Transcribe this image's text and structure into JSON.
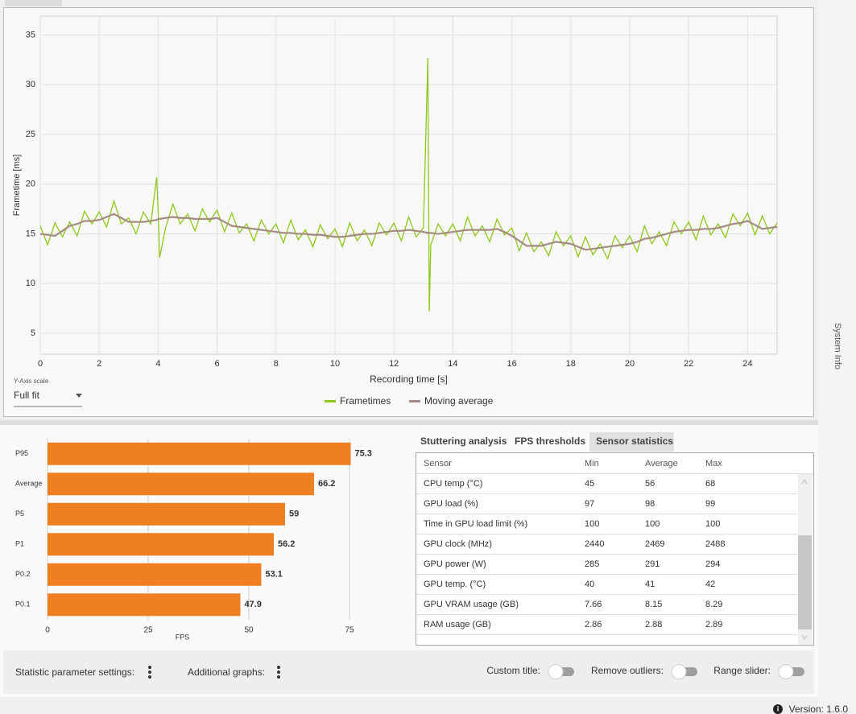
{
  "chart_data": [
    {
      "type": "line",
      "y_label": "Frametime [ms]",
      "x_label": "Recording time [s]",
      "x": [
        0,
        0.25,
        0.5,
        0.75,
        1,
        1.25,
        1.5,
        1.75,
        2,
        2.25,
        2.5,
        2.75,
        3,
        3.25,
        3.5,
        3.75,
        3.95,
        4,
        4.05,
        4.25,
        4.5,
        4.75,
        5,
        5.25,
        5.5,
        5.75,
        6,
        6.25,
        6.5,
        6.75,
        7,
        7.25,
        7.5,
        7.75,
        8,
        8.25,
        8.5,
        8.75,
        9,
        9.25,
        9.5,
        9.75,
        10,
        10.25,
        10.5,
        10.75,
        11,
        11.25,
        11.5,
        11.75,
        12,
        12.25,
        12.5,
        12.75,
        13,
        13.15,
        13.2,
        13.25,
        13.5,
        13.75,
        14,
        14.25,
        14.5,
        14.75,
        15,
        15.25,
        15.5,
        15.75,
        16,
        16.25,
        16.5,
        16.75,
        17,
        17.25,
        17.5,
        17.75,
        18,
        18.25,
        18.5,
        18.75,
        19,
        19.25,
        19.5,
        19.75,
        20,
        20.25,
        20.5,
        20.75,
        21,
        21.25,
        21.5,
        21.75,
        22,
        22.25,
        22.5,
        22.75,
        23,
        23.25,
        23.5,
        23.75,
        24,
        24.25,
        24.5,
        24.75,
        25
      ],
      "series": [
        {
          "name": "Frametimes",
          "color": "#8ec81a",
          "values": [
            15.8,
            13.9,
            16.1,
            14.7,
            16.2,
            14.8,
            17.3,
            16.0,
            17.2,
            15.7,
            18.3,
            16.0,
            16.6,
            15.0,
            17.2,
            16.0,
            20.7,
            17.3,
            12.6,
            15.6,
            18.0,
            16.0,
            17.0,
            15.3,
            17.5,
            16.2,
            17.4,
            15.2,
            17.1,
            15.1,
            16.0,
            14.3,
            16.4,
            15.0,
            16.0,
            14.1,
            16.4,
            14.4,
            15.4,
            13.7,
            15.9,
            14.5,
            15.5,
            13.7,
            16.1,
            14.3,
            15.4,
            13.8,
            16.1,
            14.9,
            16.1,
            14.3,
            16.7,
            14.7,
            15.6,
            32.7,
            7.2,
            13.9,
            16.0,
            14.8,
            16.0,
            14.3,
            16.7,
            14.8,
            15.8,
            14.2,
            16.5,
            14.9,
            15.6,
            13.3,
            15.1,
            13.2,
            14.2,
            12.8,
            15.2,
            13.8,
            14.8,
            12.7,
            14.7,
            12.9,
            14.0,
            12.5,
            14.8,
            13.6,
            14.8,
            13.2,
            15.8,
            14.0,
            15.2,
            13.8,
            16.2,
            15.0,
            16.2,
            14.4,
            16.8,
            14.9,
            16.0,
            14.6,
            17.0,
            15.8,
            17.1,
            14.9,
            16.8,
            15.0,
            16.1
          ]
        },
        {
          "name": "Moving average",
          "color": "#a38c82",
          "values": [
            15.0,
            14.9,
            14.8,
            15.3,
            15.8,
            16.0,
            16.3,
            16.3,
            16.4,
            16.7,
            17.0,
            16.6,
            16.2,
            16.2,
            16.2,
            16.3,
            16.4,
            16.5,
            16.5,
            16.6,
            16.7,
            16.6,
            16.6,
            16.5,
            16.5,
            16.5,
            16.6,
            16.2,
            15.8,
            15.7,
            15.6,
            15.5,
            15.4,
            15.3,
            15.2,
            15.1,
            15.1,
            15.0,
            15.0,
            14.9,
            14.9,
            14.8,
            14.7,
            14.7,
            14.8,
            14.9,
            15.0,
            15.0,
            15.1,
            15.2,
            15.3,
            15.3,
            15.4,
            15.3,
            15.2,
            15.1,
            15.1,
            15.1,
            15.0,
            15.1,
            15.2,
            15.3,
            15.4,
            15.4,
            15.4,
            15.4,
            15.5,
            15.2,
            14.8,
            14.3,
            13.8,
            13.8,
            13.8,
            14.0,
            14.2,
            14.1,
            14.0,
            13.7,
            13.4,
            13.5,
            13.6,
            13.7,
            13.8,
            13.9,
            14.0,
            14.2,
            14.5,
            14.6,
            14.8,
            15.0,
            15.2,
            15.3,
            15.4,
            15.4,
            15.5,
            15.5,
            15.6,
            15.8,
            16.0,
            16.1,
            16.3,
            15.9,
            15.5,
            15.6,
            15.7
          ]
        }
      ],
      "xlim": [
        0,
        25
      ],
      "xticks": [
        0,
        2,
        4,
        6,
        8,
        10,
        12,
        14,
        16,
        18,
        20,
        22,
        24
      ],
      "ylim": [
        2.9,
        36.9
      ],
      "yticks": [
        5,
        10,
        15,
        20,
        25,
        30,
        35
      ],
      "grid": true,
      "legend": "bottom"
    },
    {
      "type": "bar",
      "orientation": "horizontal",
      "x_label": "FPS",
      "categories": [
        "P95",
        "Average",
        "P5",
        "P1",
        "P0.2",
        "P0.1"
      ],
      "values": [
        75.3,
        66.2,
        59,
        56.2,
        53.1,
        47.9
      ],
      "color": "#f07f22",
      "xlim": [
        0,
        75
      ],
      "xticks": [
        0,
        25,
        50,
        75
      ],
      "grid": true
    }
  ],
  "y_axis_scale": {
    "label": "Y-Axis scale",
    "value": "Full fit"
  },
  "tabs": [
    "Stuttering analysis",
    "FPS thresholds",
    "Sensor statistics"
  ],
  "active_tab": 2,
  "sensor_table": {
    "headers": [
      "Sensor",
      "Min",
      "Average",
      "Max"
    ],
    "rows": [
      [
        "CPU temp (°C)",
        "45",
        "56",
        "68"
      ],
      [
        "GPU load (%)",
        "97",
        "98",
        "99"
      ],
      [
        "Time in GPU load limit (%)",
        "100",
        "100",
        "100"
      ],
      [
        "GPU clock (MHz)",
        "2440",
        "2469",
        "2488"
      ],
      [
        "GPU power (W)",
        "285",
        "291",
        "294"
      ],
      [
        "GPU temp. (°C)",
        "40",
        "41",
        "42"
      ],
      [
        "GPU VRAM usage (GB)",
        "7.66",
        "8.15",
        "8.29"
      ],
      [
        "RAM usage (GB)",
        "2.86",
        "2.88",
        "2.89"
      ]
    ]
  },
  "settings": {
    "statistic_parameter_settings": "Statistic parameter settings:",
    "additional_graphs": "Additional graphs:",
    "toggles": [
      "Custom title:",
      "Remove outliers:",
      "Range slider:"
    ]
  },
  "side_tab": "System Info",
  "version": "Version: 1.6.0"
}
